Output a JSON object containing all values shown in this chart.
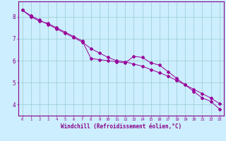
{
  "line1_x": [
    0,
    1,
    2,
    3,
    4,
    5,
    6,
    7,
    8,
    9,
    10,
    11,
    12,
    13,
    14,
    15,
    16,
    17,
    18,
    19,
    20,
    21,
    22,
    23
  ],
  "line1_y": [
    8.3,
    8.0,
    7.8,
    7.7,
    7.5,
    7.3,
    7.1,
    6.9,
    6.1,
    6.05,
    6.0,
    5.95,
    5.9,
    6.2,
    6.15,
    5.9,
    5.8,
    5.5,
    5.2,
    4.9,
    4.6,
    4.3,
    4.15,
    3.8
  ],
  "line2_x": [
    0,
    1,
    2,
    3,
    4,
    5,
    6,
    7,
    8,
    9,
    10,
    11,
    12,
    13,
    14,
    15,
    16,
    17,
    18,
    19,
    20,
    21,
    22,
    23
  ],
  "line2_y": [
    8.3,
    8.05,
    7.85,
    7.65,
    7.45,
    7.25,
    7.05,
    6.85,
    6.55,
    6.35,
    6.15,
    6.0,
    5.95,
    5.85,
    5.75,
    5.6,
    5.45,
    5.3,
    5.1,
    4.9,
    4.7,
    4.5,
    4.3,
    4.05
  ],
  "line_color": "#990099",
  "marker": "D",
  "marker_size": 2.0,
  "line_width": 0.7,
  "background_color": "#cceeff",
  "grid_color": "#99cccc",
  "xlabel": "Windchill (Refroidissement éolien,°C)",
  "yticks": [
    4,
    5,
    6,
    7,
    8
  ],
  "xticks": [
    0,
    1,
    2,
    3,
    4,
    5,
    6,
    7,
    8,
    9,
    10,
    11,
    12,
    13,
    14,
    15,
    16,
    17,
    18,
    19,
    20,
    21,
    22,
    23
  ],
  "ylim": [
    3.5,
    8.7
  ],
  "xlim": [
    -0.5,
    23.5
  ],
  "axis_color": "#880088",
  "tick_color": "#880088",
  "label_color": "#880088",
  "xlabel_fontsize": 5.5,
  "xtick_fontsize": 4.0,
  "ytick_fontsize": 5.5
}
